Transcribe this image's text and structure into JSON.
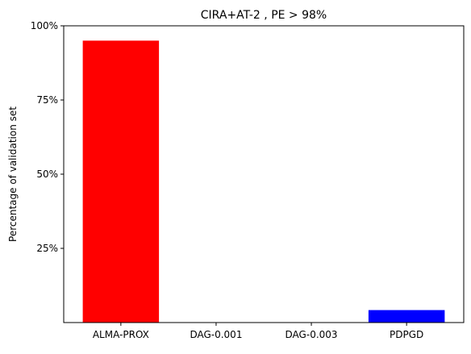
{
  "chart_data": {
    "type": "bar",
    "title": "CIRA+AT-2 , PE > 98%",
    "xlabel": "",
    "ylabel": "Percentage of validation set",
    "categories": [
      "ALMA-PROX",
      "DAG-0.001",
      "DAG-0.003",
      "PDPGD"
    ],
    "values": [
      95,
      0,
      0,
      4.2
    ],
    "bar_colors": [
      "#ff0000",
      "#ff0000",
      "#ff0000",
      "#0000ff"
    ],
    "ylim": [
      0,
      100
    ],
    "yticks": [
      25,
      50,
      75,
      100
    ],
    "ytick_labels": [
      "25%",
      "50%",
      "75%",
      "100%"
    ],
    "grid": false,
    "legend": "none"
  }
}
